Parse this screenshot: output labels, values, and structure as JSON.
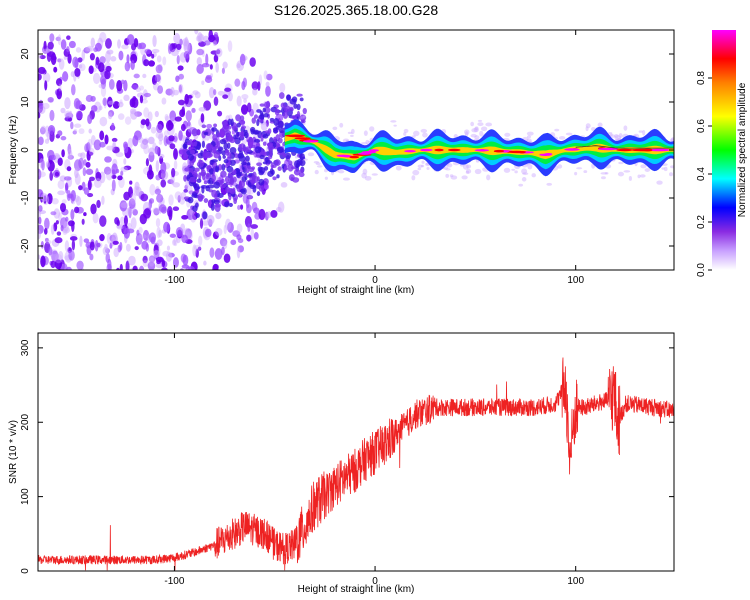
{
  "title": "S126.2025.365.18.00.G28",
  "chart_data": [
    {
      "type": "heatmap",
      "xlabel": "Height of straight line (km)",
      "ylabel": "Frequency (Hz)",
      "xlim": [
        -168,
        149
      ],
      "ylim": [
        -25,
        25
      ],
      "xticks": [
        -100,
        0,
        100
      ],
      "yticks": [
        -20,
        -10,
        0,
        10,
        20
      ],
      "colorbar": {
        "label": "Normalized spectral amplitude",
        "range": [
          0,
          1
        ],
        "ticks": [
          0.0,
          0.2,
          0.4,
          0.6,
          0.8
        ],
        "tick_labels": [
          "0.0",
          "0.2",
          "0.4",
          "0.6",
          "0.8"
        ],
        "colormap": [
          "#ffffff",
          "#8a2be2",
          "#0000ff",
          "#00ffff",
          "#00ff00",
          "#ffff00",
          "#ff8000",
          "#ff0000",
          "#ff00ff"
        ]
      },
      "ridge": {
        "description_points": [
          [
            -90,
            -5
          ],
          [
            -70,
            -2
          ],
          [
            -50,
            1.5
          ],
          [
            -40,
            3
          ],
          [
            -30,
            1.5
          ],
          [
            -20,
            -1
          ],
          [
            -10,
            -1.5
          ],
          [
            0,
            0
          ],
          [
            10,
            -0.5
          ],
          [
            25,
            0
          ],
          [
            50,
            0
          ],
          [
            75,
            -0.5
          ],
          [
            85,
            -1
          ],
          [
            95,
            0
          ],
          [
            110,
            0.5
          ],
          [
            120,
            0
          ],
          [
            149,
            0
          ]
        ]
      }
    },
    {
      "type": "line",
      "xlabel": "Height of straight line (km)",
      "ylabel": "SNR (10 * v/v)",
      "xlim": [
        -168,
        149
      ],
      "ylim": [
        0,
        320
      ],
      "xticks": [
        -100,
        0,
        100
      ],
      "yticks": [
        0,
        100,
        200,
        300
      ],
      "color": "#ee2222",
      "series": [
        {
          "name": "SNR",
          "x": [
            -168,
            -150,
            -130,
            -110,
            -100,
            -90,
            -80,
            -70,
            -65,
            -60,
            -55,
            -50,
            -45,
            -40,
            -35,
            -30,
            -25,
            -20,
            -15,
            -10,
            -5,
            0,
            5,
            10,
            15,
            20,
            25,
            30,
            40,
            60,
            80,
            90,
            95,
            97,
            100,
            105,
            110,
            117,
            119,
            121,
            125,
            140,
            149
          ],
          "values": [
            15,
            15,
            15,
            15,
            18,
            25,
            35,
            50,
            60,
            55,
            50,
            35,
            30,
            35,
            60,
            90,
            100,
            115,
            125,
            135,
            150,
            160,
            170,
            185,
            195,
            210,
            215,
            220,
            220,
            220,
            220,
            225,
            250,
            150,
            220,
            220,
            225,
            230,
            240,
            200,
            225,
            220,
            215
          ]
        }
      ]
    }
  ]
}
